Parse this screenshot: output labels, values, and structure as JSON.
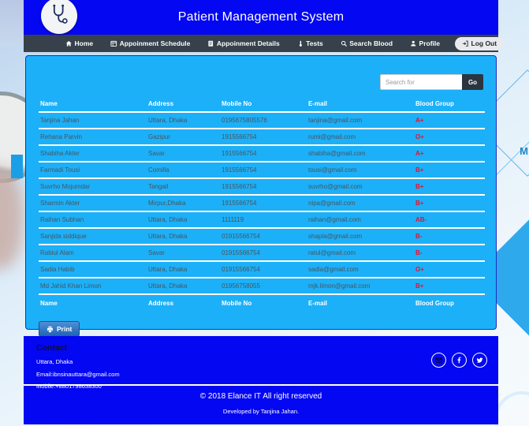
{
  "header": {
    "title": "Patient Management System",
    "logo_icon": "stethoscope-icon"
  },
  "nav": {
    "items": [
      {
        "label": "Home",
        "icon": "home-icon"
      },
      {
        "label": "Appoinment Schedule",
        "icon": "schedule-icon"
      },
      {
        "label": "Appoinment Details",
        "icon": "details-icon"
      },
      {
        "label": "Tests",
        "icon": "tests-icon"
      },
      {
        "label": "Search Blood",
        "icon": "search-icon"
      },
      {
        "label": "Profile",
        "icon": "profile-icon"
      },
      {
        "label": "Log Out",
        "icon": "logout-icon"
      }
    ]
  },
  "search": {
    "placeholder": "Search for",
    "button_label": "Go"
  },
  "table": {
    "headers": [
      "Name",
      "Address",
      "Mobile No",
      "E-mail",
      "Blood Group"
    ],
    "rows": [
      [
        "Tanjina Jahan",
        "Uttara, Dhaka",
        "0195675805576",
        "tanjina@gmail.com",
        "A+"
      ],
      [
        "Rehana Parvin",
        "Gazipur",
        "1915566754",
        "rumi@gmail.com",
        "O+"
      ],
      [
        "Shabiha Akter",
        "Savar",
        "1915566754",
        "shabiha@gmail.com",
        "A+"
      ],
      [
        "Farmadi Tousi",
        "Comilla",
        "1915566754",
        "tousi@gmail.com",
        "B+"
      ],
      [
        "Suvrho Mojumdar",
        "Tangail",
        "1915566754",
        "suvrho@gmail.com",
        "B+"
      ],
      [
        "Sharmin Akter",
        "Mirpur,Dhaka",
        "1915566754",
        "nipa@gmail.com",
        "B+"
      ],
      [
        "Raihan Subhan",
        "Uttara, Dhaka",
        "1111119",
        "raihan@gmail.com",
        "AB-"
      ],
      [
        "Sanjida siddique",
        "Uttara, Dhaka",
        "01915566754",
        "shapla@gmail.com",
        "B-"
      ],
      [
        "Rabiul Alam",
        "Savar",
        "01915566754",
        "ratul@gmail.com",
        "B-"
      ],
      [
        "Sadia Habib",
        "Uttara, Dhaka",
        "01915566754",
        "sadia@gmail.com",
        "O+"
      ],
      [
        "Md Jahid Khan Limon",
        "Uttara, Dhaka",
        "01956758055",
        "mjk.limon@gmail.com",
        "B+"
      ]
    ],
    "footer_headers": [
      "Name",
      "Address",
      "Mobile No",
      "E-mail",
      "Blood Group"
    ]
  },
  "print_button": {
    "label": "Print",
    "icon": "printer-icon"
  },
  "footer": {
    "contact_heading": "Contact",
    "address": "Uttara, Dhaka",
    "email": "Email:ibnsinauttara@gmail.com",
    "mobile": "Mobile:+8801798638300",
    "social_icons": [
      "mail-icon",
      "facebook-icon",
      "twitter-icon"
    ],
    "copyright": "© 2018 Elance IT All right reserved",
    "developer": "Developed by Tanjina Jahan."
  },
  "colors": {
    "header_blue": "#0407f2",
    "nav_dark": "#37414b",
    "panel_blue": "#1cb0f8",
    "blood_red": "#e8112d",
    "go_button_dark": "#2b353f",
    "print_blue": "#1f63b4"
  },
  "background_letter": "M"
}
